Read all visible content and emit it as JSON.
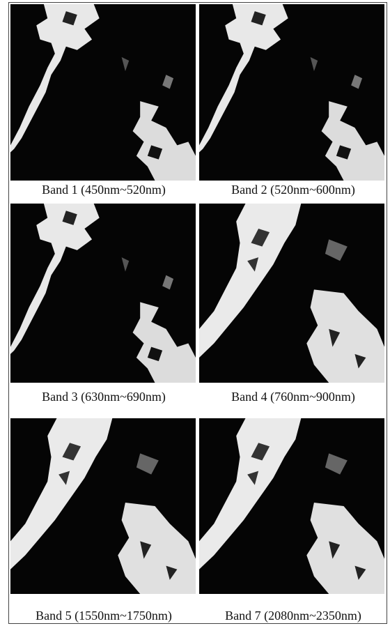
{
  "panels": [
    {
      "caption": "Band 1 (450nm~520nm)"
    },
    {
      "caption": "Band 2 (520nm~600nm)"
    },
    {
      "caption": "Band 3 (630nm~690nm)"
    },
    {
      "caption": "Band 4 (760nm~900nm)"
    },
    {
      "caption": "Band 5 (1550nm~1750nm)"
    },
    {
      "caption": "Band 7 (2080nm~2350nm)"
    }
  ]
}
